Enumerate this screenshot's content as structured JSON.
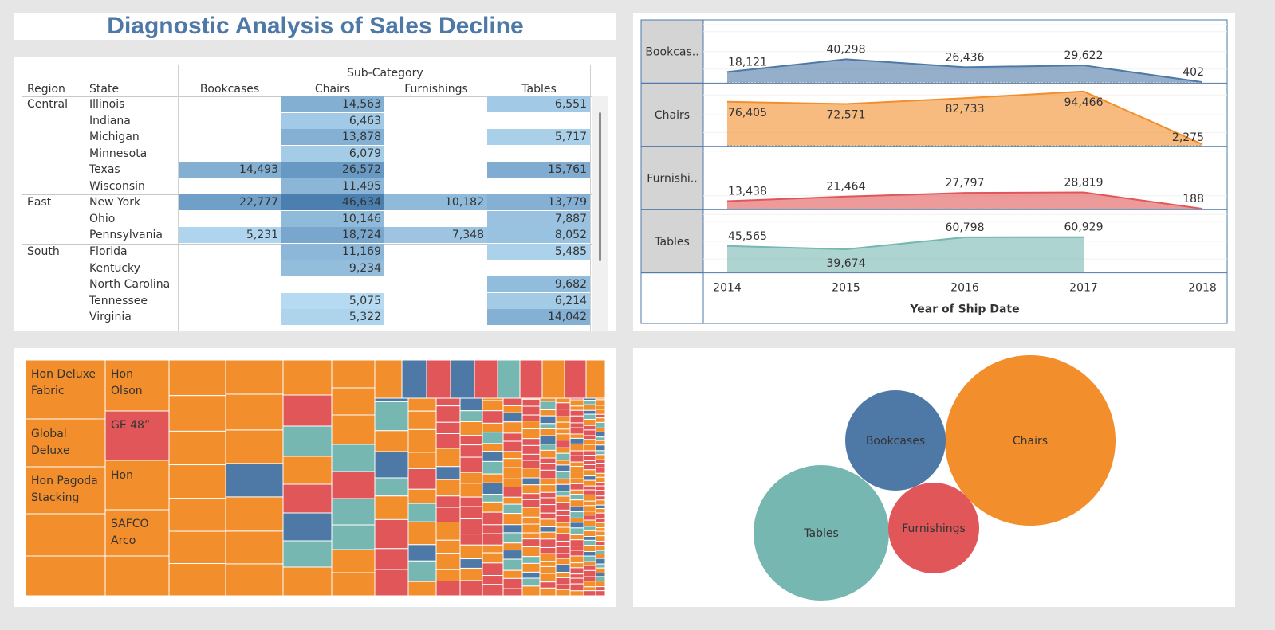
{
  "title": "Diagnostic Analysis of Sales Decline",
  "colors": {
    "title": "#4e79a7",
    "Bookcases": "#4e79a7",
    "Chairs": "#f28e2b",
    "Furnishings": "#e15759",
    "Tables": "#76b7b2"
  },
  "chart_data": [
    {
      "type": "table",
      "column_header": "Sub-Category",
      "row_headers": [
        "Region",
        "State"
      ],
      "columns": [
        "Bookcases",
        "Chairs",
        "Furnishings",
        "Tables"
      ],
      "rows": [
        {
          "region": "Central",
          "state": "Illinois",
          "values": [
            null,
            "14,563",
            null,
            "6,551"
          ]
        },
        {
          "region": "",
          "state": "Indiana",
          "values": [
            null,
            "6,463",
            null,
            null
          ]
        },
        {
          "region": "",
          "state": "Michigan",
          "values": [
            null,
            "13,878",
            null,
            "5,717"
          ]
        },
        {
          "region": "",
          "state": "Minnesota",
          "values": [
            null,
            "6,079",
            null,
            null
          ]
        },
        {
          "region": "",
          "state": "Texas",
          "values": [
            "14,493",
            "26,572",
            null,
            "15,761"
          ]
        },
        {
          "region": "",
          "state": "Wisconsin",
          "values": [
            null,
            "11,495",
            null,
            null
          ]
        },
        {
          "region": "East",
          "state": "New York",
          "values": [
            "22,777",
            "46,634",
            "10,182",
            "13,779"
          ]
        },
        {
          "region": "",
          "state": "Ohio",
          "values": [
            null,
            "10,146",
            null,
            "7,887"
          ]
        },
        {
          "region": "",
          "state": "Pennsylvania",
          "values": [
            "5,231",
            "18,724",
            "7,348",
            "8,052"
          ]
        },
        {
          "region": "South",
          "state": "Florida",
          "values": [
            null,
            "11,169",
            null,
            "5,485"
          ]
        },
        {
          "region": "",
          "state": "Kentucky",
          "values": [
            null,
            "9,234",
            null,
            null
          ]
        },
        {
          "region": "",
          "state": "North Carolina",
          "values": [
            null,
            null,
            null,
            "9,682"
          ]
        },
        {
          "region": "",
          "state": "Tennessee",
          "values": [
            null,
            "5,075",
            null,
            "6,214"
          ]
        },
        {
          "region": "",
          "state": "Virginia",
          "values": [
            null,
            "5,322",
            null,
            "14,042"
          ]
        }
      ]
    },
    {
      "type": "area",
      "xlabel": "Year of Ship Date",
      "x": [
        2014,
        2015,
        2016,
        2017,
        2018
      ],
      "x_ticks": [
        "2014",
        "2015",
        "2016",
        "2017",
        "2018"
      ],
      "rows": [
        {
          "name": "Bookcas..",
          "key": "Bookcases",
          "values": [
            18121,
            40298,
            26436,
            29622,
            402
          ],
          "labels": [
            "18,121",
            "40,298",
            "26,436",
            "29,622",
            "402"
          ]
        },
        {
          "name": "Chairs",
          "key": "Chairs",
          "values": [
            76405,
            72571,
            82733,
            94466,
            2275
          ],
          "labels": [
            "76,405",
            "72,571",
            "82,733",
            "94,466",
            "2,275"
          ]
        },
        {
          "name": "Furnishi..",
          "key": "Furnishings",
          "values": [
            13438,
            21464,
            27797,
            28819,
            188
          ],
          "labels": [
            "13,438",
            "21,464",
            "27,797",
            "28,819",
            "188"
          ]
        },
        {
          "name": "Tables",
          "key": "Tables",
          "values": [
            45565,
            39674,
            60798,
            60929,
            null
          ],
          "labels": [
            "45,565",
            "39,674",
            "60,798",
            "60,929",
            ""
          ]
        }
      ]
    },
    {
      "type": "treemap",
      "labels": [
        "Hon Deluxe Fabric",
        "Hon Olson",
        "GE 48”",
        "Global Deluxe",
        "Hon Pagoda Stacking",
        "Hon",
        "SAFCO Arco"
      ]
    },
    {
      "type": "bubble",
      "bubbles": [
        {
          "label": "Chairs",
          "key": "Chairs"
        },
        {
          "label": "Bookcases",
          "key": "Bookcases"
        },
        {
          "label": "Tables",
          "key": "Tables"
        },
        {
          "label": "Furnishings",
          "key": "Furnishings"
        }
      ]
    }
  ]
}
